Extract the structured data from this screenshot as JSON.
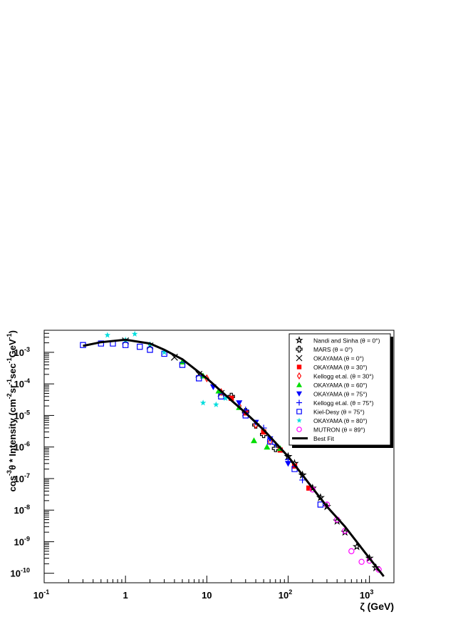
{
  "chart_data": {
    "type": "scatter",
    "x_label": [
      "ζ (GeV)"
    ],
    "y_label": [
      "cos",
      "-3",
      "θ * Intensity (cm",
      "-2",
      "sr",
      "-1",
      "sec",
      "-1",
      "GeV",
      "-1",
      ")"
    ],
    "log_x": true,
    "log_y": true,
    "legend": "top-right",
    "xlim": [
      0.1,
      2000
    ],
    "ylim": [
      5e-11,
      0.005
    ],
    "xticks": [
      {
        "value": 0.1,
        "label": "10",
        "exponent": "-1"
      },
      {
        "value": 1,
        "label": "1"
      },
      {
        "value": 10,
        "label": "10"
      },
      {
        "value": 100,
        "label": "10",
        "exponent": "2"
      },
      {
        "value": 1000,
        "label": "10",
        "exponent": "3"
      }
    ],
    "yticks": [
      {
        "value": 1e-10,
        "label": "10",
        "exponent": "-10"
      },
      {
        "value": 1e-09,
        "label": "10",
        "exponent": "-9"
      },
      {
        "value": 1e-08,
        "label": "10",
        "exponent": "-8"
      },
      {
        "value": 1e-07,
        "label": "10",
        "exponent": "-7"
      },
      {
        "value": 1e-06,
        "label": "10",
        "exponent": "-6"
      },
      {
        "value": 1e-05,
        "label": "10",
        "exponent": "-5"
      },
      {
        "value": 0.0001,
        "label": "10",
        "exponent": "-4"
      },
      {
        "value": 0.001,
        "label": "10",
        "exponent": "-3"
      }
    ],
    "series": [
      {
        "name": "Nandi and Sinha (θ = 0°)",
        "marker": "star",
        "color": "#000000",
        "x": [
          100,
          120,
          150,
          200,
          250,
          300,
          400,
          500,
          700,
          1000,
          1200
        ],
        "values": [
          5e-07,
          3e-07,
          1.3e-07,
          5e-08,
          2.5e-08,
          1.3e-08,
          4.5e-09,
          2e-09,
          7e-10,
          3e-10,
          1.5e-10
        ]
      },
      {
        "name": "MARS (θ = 0°)",
        "marker": "opencross",
        "color": "#000000",
        "x": [
          20,
          30,
          40,
          50,
          70
        ],
        "values": [
          4e-05,
          1.3e-05,
          5e-06,
          2.5e-06,
          9e-07
        ]
      },
      {
        "name": "OKAYAMA (θ = 0°)",
        "marker": "x",
        "color": "#000000",
        "x": [
          1,
          2,
          4,
          8,
          15,
          30
        ],
        "values": [
          0.0023,
          0.0016,
          0.0007,
          0.0002,
          5e-05,
          1.2e-05
        ]
      },
      {
        "name": "OKAYAMA (θ = 30°)",
        "marker": "square",
        "color": "#ff0000",
        "x": [
          20,
          30,
          50,
          80,
          120,
          180
        ],
        "values": [
          3.5e-05,
          1.2e-05,
          3e-06,
          8e-07,
          2.5e-07,
          5e-08
        ]
      },
      {
        "name": "Kellogg et.al. (θ = 30°)",
        "marker": "diamond",
        "color": "#ff0000",
        "x": [
          10,
          15,
          25,
          40,
          60
        ],
        "values": [
          0.00015,
          5.5e-05,
          2e-05,
          5e-06,
          1.5e-06
        ]
      },
      {
        "name": "OKAYAMA (θ = 60°)",
        "marker": "triangle",
        "color": "#00dd00",
        "x": [
          5,
          9,
          14,
          25,
          38,
          55,
          80
        ],
        "values": [
          0.0005,
          0.00018,
          6e-05,
          1.8e-05,
          1.6e-06,
          1e-06,
          9e-07
        ]
      },
      {
        "name": "OKAYAMA (θ = 75°)",
        "marker": "triangledown",
        "color": "#0000ff",
        "x": [
          12,
          25,
          40,
          60,
          100
        ],
        "values": [
          8e-05,
          2.5e-05,
          6e-06,
          1.8e-06,
          3e-07
        ]
      },
      {
        "name": "Kellogg et.al. (θ = 75°)",
        "marker": "plus",
        "color": "#0000ff",
        "x": [
          30,
          50,
          70,
          100,
          150
        ],
        "values": [
          1.5e-05,
          4e-06,
          1.2e-06,
          4e-07,
          9e-08
        ]
      },
      {
        "name": "Kiel-Desy (θ = 75°)",
        "marker": "opensquare",
        "color": "#0000ff",
        "x": [
          0.3,
          0.5,
          0.7,
          1,
          1.5,
          2,
          3,
          5,
          8,
          15,
          30,
          60,
          120,
          250
        ],
        "values": [
          0.0017,
          0.0019,
          0.0019,
          0.0017,
          0.0015,
          0.0012,
          0.0009,
          0.0004,
          0.00015,
          4e-05,
          1e-05,
          1.5e-06,
          2e-07,
          1.5e-08
        ]
      },
      {
        "name": "OKAYAMA (θ = 80°)",
        "marker": "star",
        "color": "#00dddd",
        "x": [
          0.6,
          1,
          1.3,
          2,
          3,
          9,
          13,
          17
        ],
        "values": [
          0.0035,
          0.0025,
          0.0038,
          0.0018,
          0.001,
          2.5e-05,
          2.2e-05,
          3.5e-05
        ]
      },
      {
        "name": "MUTRON (θ = 89°)",
        "marker": "circle",
        "color": "#ff00ff",
        "x": [
          200,
          300,
          400,
          500,
          600,
          800,
          1000,
          1300
        ],
        "values": [
          4.5e-08,
          1.5e-08,
          5e-09,
          2.2e-09,
          5e-10,
          2.3e-10,
          2.5e-10,
          1.3e-10
        ]
      },
      {
        "name": "Best Fit",
        "marker": "line",
        "color": "#000000",
        "x": [
          0.3,
          0.5,
          1,
          2,
          3,
          5,
          10,
          20,
          30,
          50,
          100,
          200,
          300,
          500,
          1000,
          1500
        ],
        "values": [
          0.0016,
          0.0021,
          0.0025,
          0.0019,
          0.0012,
          0.0006,
          0.00015,
          3e-05,
          1.2e-05,
          3.5e-06,
          5e-07,
          5e-08,
          1.3e-08,
          3e-09,
          3e-10,
          8e-11
        ]
      }
    ]
  }
}
